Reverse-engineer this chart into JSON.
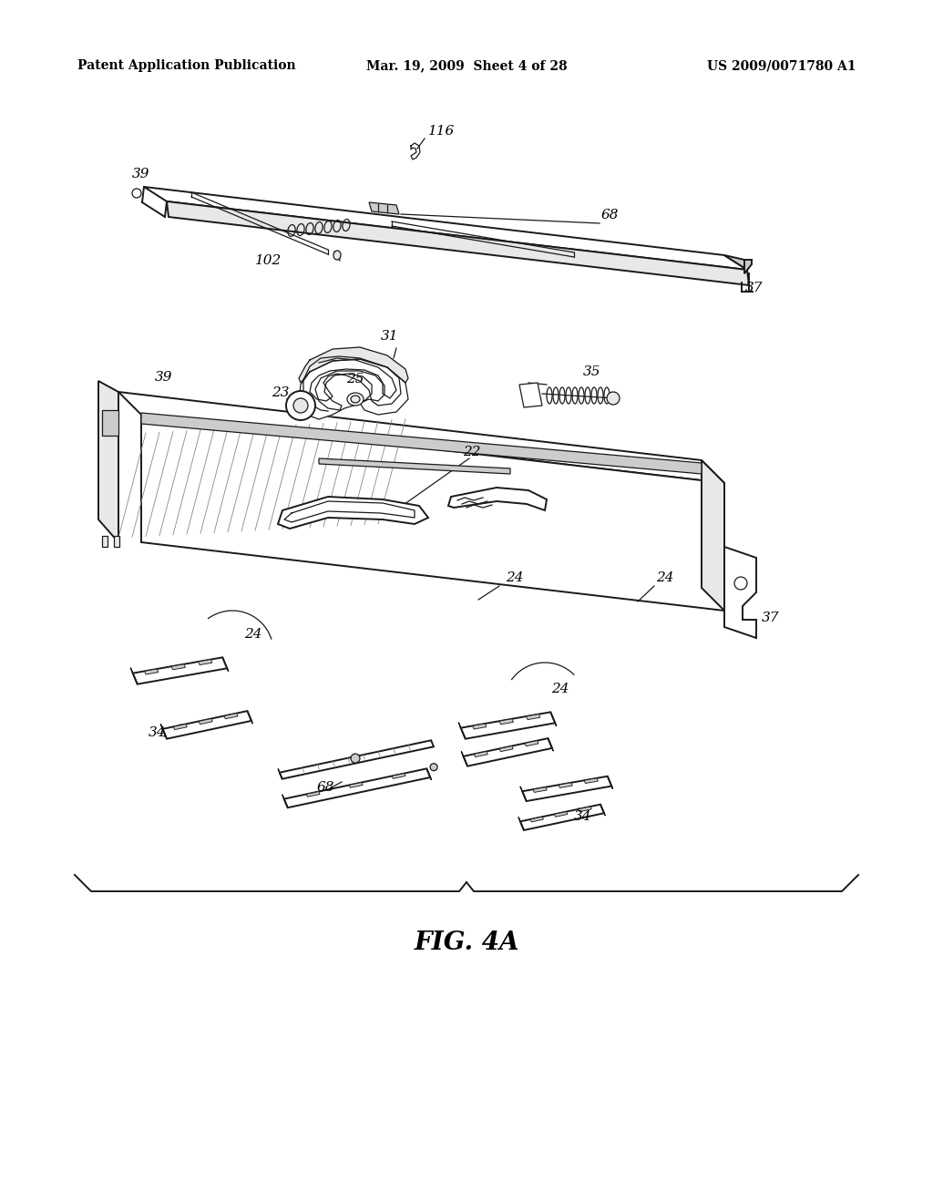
{
  "bg_color": "#ffffff",
  "line_color": "#1a1a1a",
  "header_left": "Patent Application Publication",
  "header_center": "Mar. 19, 2009  Sheet 4 of 28",
  "header_right": "US 2009/0071780 A1",
  "figure_label": "FIG. 4A",
  "lw_main": 1.4,
  "lw_thin": 0.9,
  "lw_thick": 1.8
}
